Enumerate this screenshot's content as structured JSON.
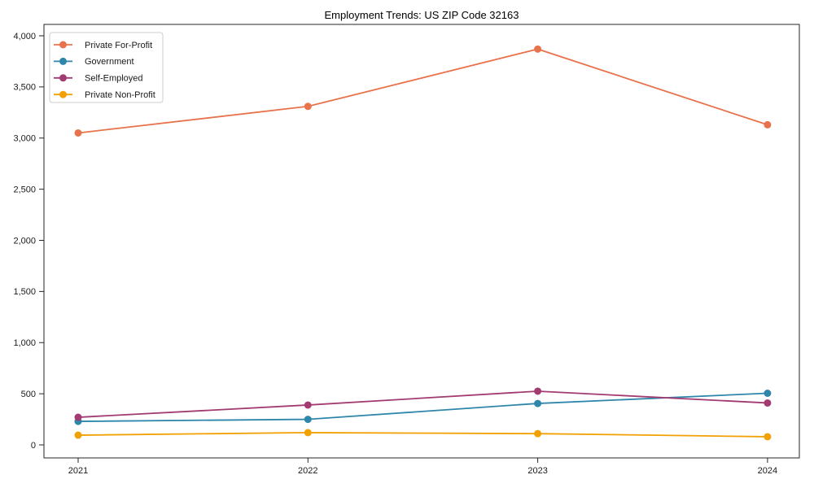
{
  "chart_data": {
    "type": "line",
    "title": "Employment Trends: US ZIP Code 32163",
    "xlabel": "",
    "ylabel": "",
    "categories": [
      "2021",
      "2022",
      "2023",
      "2024"
    ],
    "x": [
      2021,
      2022,
      2023,
      2024
    ],
    "series": [
      {
        "name": "Private For-Profit",
        "color": "#E8724C",
        "values": [
          3050,
          3310,
          3870,
          3130
        ]
      },
      {
        "name": "Government",
        "color": "#2E86AB",
        "values": [
          230,
          250,
          405,
          505
        ]
      },
      {
        "name": "Self-Employed",
        "color": "#A23B72",
        "values": [
          270,
          390,
          525,
          410
        ]
      },
      {
        "name": "Private Non-Profit",
        "color": "#F2A104",
        "values": [
          95,
          120,
          110,
          80
        ]
      }
    ],
    "yticks": [
      0,
      500,
      1000,
      1500,
      2000,
      2500,
      3000,
      3500,
      4000
    ],
    "ytick_labels": [
      "0",
      "500",
      "1,000",
      "1,500",
      "2,000",
      "2,500",
      "3,000",
      "3,500",
      "4,000"
    ],
    "ylim": [
      -130,
      4115
    ],
    "grid": false,
    "legend_position": "upper left",
    "frame": true,
    "axis_color": "#262626",
    "tick_text_color": "#1a1a1a",
    "legend_border_color": "#cccccc",
    "legend_bg_color": "#ffffff"
  }
}
